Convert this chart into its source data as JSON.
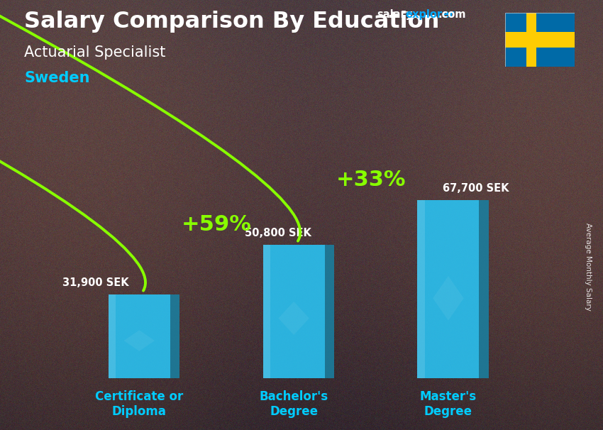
{
  "title": "Salary Comparison By Education",
  "subtitle": "Actuarial Specialist",
  "country": "Sweden",
  "categories": [
    "Certificate or\nDiploma",
    "Bachelor's\nDegree",
    "Master's\nDegree"
  ],
  "values": [
    31900,
    50800,
    67700
  ],
  "value_labels": [
    "31,900 SEK",
    "50,800 SEK",
    "67,700 SEK"
  ],
  "pct_labels": [
    "+59%",
    "+33%"
  ],
  "bar_face_color": "#29c5f6",
  "bar_side_color": "#1a7fa0",
  "bar_dark_color": "#0d5c7a",
  "bar_top_color": "#55d8ff",
  "arrow_color": "#88ff00",
  "pct_color": "#88ff00",
  "category_color": "#00ccff",
  "value_color": "#ffffff",
  "site_color_white": "#ffffff",
  "site_color_cyan": "#00aaff",
  "country_color": "#00ccff",
  "ylabel": "Average Monthly Salary",
  "ylim": [
    0,
    85000
  ],
  "bg_color": "#3a3540"
}
